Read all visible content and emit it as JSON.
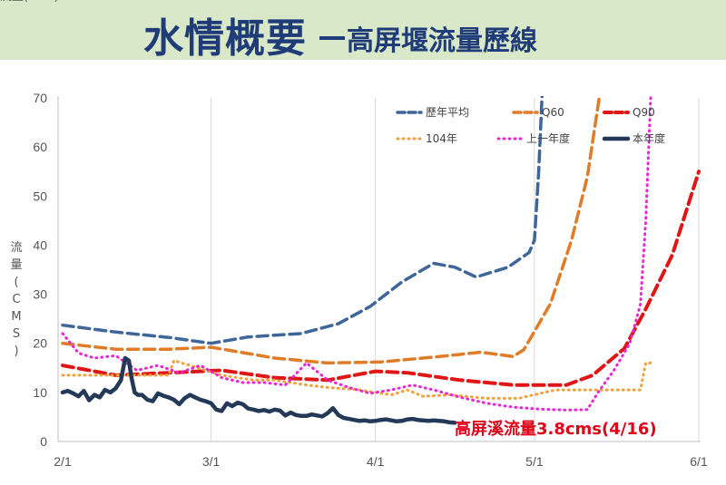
{
  "header": {
    "title_main": "水情概要",
    "title_sub": "高屏堰流量歷線"
  },
  "chart_data": {
    "type": "line",
    "title": "水情概要─高屏堰流量歷線",
    "ylabel": "流量(CMS)",
    "ylabel_chars": [
      "流",
      "量",
      "(",
      "C",
      "M",
      "S",
      ")"
    ],
    "xlabel": "",
    "ylim": [
      0,
      70
    ],
    "yticks": [
      0,
      10,
      20,
      30,
      40,
      50,
      60,
      70
    ],
    "xlim": [
      0,
      120
    ],
    "xticks": [
      {
        "label": "2/1",
        "x": 0
      },
      {
        "label": "3/1",
        "x": 28
      },
      {
        "label": "4/1",
        "x": 59
      },
      {
        "label": "5/1",
        "x": 89
      },
      {
        "label": "6/1",
        "x": 120
      }
    ],
    "grid": "vertical",
    "legend_position": "top-right",
    "annotation": "高屏溪流量3.8cms(4/16)",
    "series": [
      {
        "name": "歷年平均",
        "color": "#3e6698",
        "dash": "dashed",
        "width": 3.5,
        "x": [
          0,
          10,
          20,
          28,
          35,
          45,
          52,
          58,
          64,
          70,
          74,
          78,
          84,
          88,
          89,
          89.8,
          90.5
        ],
        "y": [
          23.7,
          22.3,
          21.2,
          20,
          21.3,
          22,
          24,
          27.5,
          32.5,
          36.3,
          35.5,
          33.5,
          35.5,
          38.5,
          41,
          55,
          72
        ]
      },
      {
        "name": "Q60",
        "color": "#e07b28",
        "dash": "dashed",
        "width": 3.5,
        "x": [
          0,
          10,
          20,
          28,
          40,
          50,
          60,
          70,
          79,
          85,
          87,
          92,
          96,
          99,
          101.5
        ],
        "y": [
          20,
          18.8,
          18.8,
          19.2,
          17,
          16,
          16.2,
          17.2,
          18.2,
          17.3,
          18.7,
          28,
          41,
          54,
          72
        ]
      },
      {
        "name": "Q90",
        "color": "#e01616",
        "dash": "dashed",
        "width": 4,
        "x": [
          0,
          10,
          20,
          30,
          40,
          50,
          59,
          65,
          75,
          85,
          95,
          100,
          106,
          110,
          115,
          120
        ],
        "y": [
          15.5,
          13.5,
          14,
          14.5,
          13,
          12.5,
          14.3,
          14,
          12.5,
          11.5,
          11.5,
          13.5,
          19,
          27,
          38,
          55
        ]
      },
      {
        "name": "104年",
        "color": "#f2a039",
        "dash": "dotted",
        "width": 3,
        "x": [
          0,
          10,
          20,
          21,
          24,
          30,
          36,
          40,
          46,
          50,
          56,
          62,
          65,
          68,
          73,
          80,
          86,
          93,
          100,
          109,
          110,
          111
        ],
        "y": [
          13.5,
          13.5,
          13.5,
          16.5,
          15.5,
          13.5,
          12.5,
          12.5,
          11.5,
          11,
          10.5,
          9.5,
          10.5,
          9.2,
          9.5,
          8.8,
          8.8,
          10.5,
          10.5,
          10.5,
          16,
          16
        ]
      },
      {
        "name": "上一年度",
        "color": "#e629d4",
        "dash": "dotted",
        "width": 3,
        "x": [
          0,
          3,
          6,
          10,
          14,
          18,
          22,
          26,
          30,
          34,
          38,
          42,
          46,
          50,
          54,
          58,
          62,
          66,
          70,
          75,
          80,
          85,
          90,
          95,
          99,
          101,
          104,
          107,
          109,
          110,
          111
        ],
        "y": [
          22,
          18,
          17,
          17.5,
          14.5,
          15.5,
          14,
          15.5,
          13,
          12,
          12,
          11.5,
          16,
          12.5,
          11,
          9.8,
          10.5,
          11.5,
          10.5,
          9,
          7.8,
          7,
          6.6,
          6.4,
          6.5,
          10,
          14.5,
          20,
          28,
          45,
          72
        ]
      },
      {
        "name": "本年度",
        "color": "#233957",
        "dash": "solid",
        "width": 4.5,
        "x": [
          0,
          1,
          2,
          3,
          4,
          5,
          6,
          7,
          8,
          9,
          10,
          11,
          11.8,
          12.5,
          13,
          13.6,
          14.2,
          15,
          16,
          17,
          18,
          19,
          20,
          21,
          22,
          23,
          24,
          25,
          26,
          27,
          28,
          29,
          30,
          31,
          32,
          33,
          34,
          35,
          36,
          37,
          38,
          39,
          40,
          41,
          42,
          43,
          44,
          45,
          46,
          47,
          48,
          49,
          50,
          51,
          52,
          53,
          54,
          55,
          56,
          57,
          58,
          59,
          60,
          61,
          62,
          63,
          64,
          65,
          66,
          67,
          68,
          69,
          70,
          71,
          72,
          73,
          74
        ],
        "y": [
          10,
          10.3,
          9.8,
          9.2,
          10.3,
          8.4,
          9.5,
          9,
          10.5,
          10,
          10.8,
          12.5,
          17,
          16.5,
          13,
          10,
          9.5,
          9.5,
          8.5,
          8.2,
          9.8,
          9.3,
          9,
          8.5,
          7.6,
          8.8,
          9.5,
          9,
          8.5,
          8.2,
          7.8,
          6.5,
          6.2,
          7.8,
          7.2,
          7.9,
          7.6,
          6.7,
          6.5,
          6.2,
          6.4,
          6.1,
          6.5,
          6.3,
          5.3,
          5.9,
          5.4,
          5.2,
          5.2,
          5.5,
          5.3,
          5.1,
          5.8,
          6.8,
          5.4,
          4.8,
          4.6,
          4.4,
          4.2,
          4.3,
          4.1,
          4.2,
          4.4,
          4.5,
          4.3,
          4.1,
          4.2,
          4.5,
          4.6,
          4.4,
          4.3,
          4.2,
          4.3,
          4.2,
          4.1,
          3.9,
          3.8
        ]
      }
    ]
  }
}
